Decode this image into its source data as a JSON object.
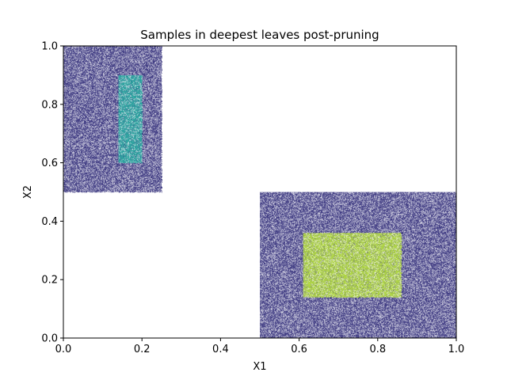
{
  "chart_data": {
    "type": "scatter",
    "title": "Samples in deepest leaves post-pruning",
    "xlabel": "X1",
    "ylabel": "X2",
    "xlim": [
      0,
      1
    ],
    "ylim": [
      0,
      1
    ],
    "xticks": [
      "0.0",
      "0.2",
      "0.4",
      "0.6",
      "0.8",
      "1.0"
    ],
    "yticks": [
      "0.0",
      "0.2",
      "0.4",
      "0.6",
      "0.8",
      "1.0"
    ],
    "grid": false,
    "legend": "none",
    "regions": [
      {
        "x": [
          0.0,
          0.25
        ],
        "y": [
          0.5,
          1.0
        ],
        "color": "#3b3680"
      },
      {
        "x": [
          0.14,
          0.2
        ],
        "y": [
          0.6,
          0.9
        ],
        "color": "#28a9a0"
      },
      {
        "x": [
          0.5,
          1.0
        ],
        "y": [
          0.0,
          0.5
        ],
        "color": "#3b3680"
      },
      {
        "x": [
          0.61,
          0.86
        ],
        "y": [
          0.14,
          0.36
        ],
        "color": "#b4dd3e"
      }
    ]
  }
}
